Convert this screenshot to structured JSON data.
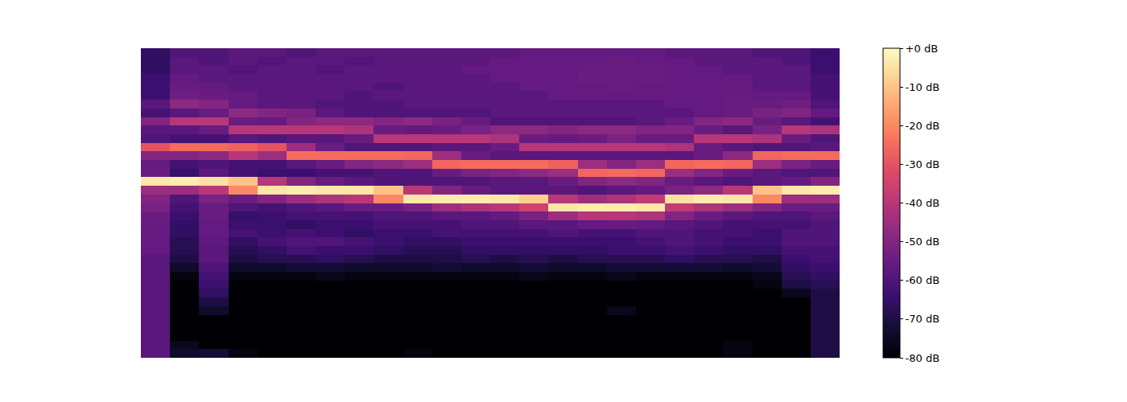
{
  "chart_data": {
    "type": "heatmap",
    "tick_labels": false,
    "cells": [
      [
        -66,
        -60,
        -60,
        -58,
        -58,
        -60,
        -58,
        -58,
        -58,
        -58,
        -58,
        -58,
        -58,
        -56,
        -56,
        -56,
        -56,
        -56,
        -58,
        -58,
        -58,
        -60,
        -60,
        -64
      ],
      [
        -66,
        -58,
        -60,
        -58,
        -60,
        -58,
        -58,
        -60,
        -58,
        -58,
        -58,
        -58,
        -56,
        -56,
        -56,
        -56,
        -55,
        -56,
        -56,
        -58,
        -58,
        -58,
        -60,
        -64
      ],
      [
        -66,
        -58,
        -58,
        -60,
        -58,
        -58,
        -60,
        -58,
        -58,
        -58,
        -58,
        -56,
        -56,
        -56,
        -56,
        -55,
        -55,
        -55,
        -56,
        -56,
        -58,
        -58,
        -58,
        -64
      ],
      [
        -64,
        -56,
        -58,
        -58,
        -58,
        -58,
        -58,
        -58,
        -58,
        -58,
        -58,
        -58,
        -56,
        -56,
        -56,
        -55,
        -55,
        -55,
        -56,
        -56,
        -56,
        -58,
        -58,
        -62
      ],
      [
        -64,
        -55,
        -56,
        -58,
        -58,
        -58,
        -58,
        -58,
        -60,
        -58,
        -58,
        -58,
        -58,
        -56,
        -56,
        -56,
        -55,
        -56,
        -56,
        -56,
        -56,
        -58,
        -58,
        -62
      ],
      [
        -64,
        -54,
        -55,
        -56,
        -58,
        -58,
        -58,
        -60,
        -58,
        -58,
        -58,
        -58,
        -58,
        -58,
        -56,
        -56,
        -56,
        -56,
        -56,
        -56,
        -55,
        -56,
        -56,
        -62
      ],
      [
        -58,
        -48,
        -50,
        -56,
        -58,
        -58,
        -60,
        -60,
        -60,
        -58,
        -58,
        -58,
        -58,
        -58,
        -58,
        -58,
        -58,
        -58,
        -56,
        -56,
        -55,
        -55,
        -54,
        -60
      ],
      [
        -62,
        -58,
        -55,
        -48,
        -50,
        -52,
        -58,
        -60,
        -60,
        -60,
        -60,
        -60,
        -58,
        -58,
        -58,
        -58,
        -58,
        -58,
        -58,
        -56,
        -55,
        -52,
        -50,
        -56
      ],
      [
        -50,
        -40,
        -40,
        -55,
        -56,
        -50,
        -48,
        -48,
        -50,
        -48,
        -52,
        -55,
        -60,
        -60,
        -60,
        -60,
        -60,
        -58,
        -55,
        -50,
        -48,
        -55,
        -58,
        -62
      ],
      [
        -58,
        -58,
        -55,
        -40,
        -40,
        -40,
        -40,
        -42,
        -55,
        -56,
        -55,
        -52,
        -48,
        -48,
        -50,
        -48,
        -48,
        -50,
        -50,
        -55,
        -58,
        -52,
        -40,
        -42
      ],
      [
        -60,
        -62,
        -62,
        -58,
        -60,
        -58,
        -58,
        -55,
        -40,
        -40,
        -40,
        -40,
        -42,
        -55,
        -56,
        -55,
        -52,
        -55,
        -55,
        -40,
        -40,
        -42,
        -55,
        -60
      ],
      [
        -30,
        -25,
        -25,
        -27,
        -30,
        -45,
        -55,
        -60,
        -60,
        -60,
        -58,
        -58,
        -55,
        -40,
        -40,
        -40,
        -40,
        -40,
        -42,
        -55,
        -58,
        -60,
        -60,
        -58
      ],
      [
        -50,
        -50,
        -48,
        -40,
        -45,
        -25,
        -25,
        -25,
        -25,
        -26,
        -45,
        -55,
        -58,
        -58,
        -58,
        -58,
        -58,
        -58,
        -58,
        -55,
        -48,
        -26,
        -25,
        -25
      ],
      [
        -56,
        -62,
        -60,
        -62,
        -62,
        -58,
        -55,
        -50,
        -48,
        -45,
        -26,
        -25,
        -25,
        -25,
        -27,
        -45,
        -50,
        -45,
        -26,
        -25,
        -26,
        -45,
        -52,
        -55
      ],
      [
        -55,
        -65,
        -58,
        -62,
        -64,
        -64,
        -62,
        -62,
        -60,
        -60,
        -55,
        -52,
        -50,
        -48,
        -45,
        -26,
        -25,
        -26,
        -45,
        -50,
        -55,
        -58,
        -60,
        -60
      ],
      [
        -4,
        -3,
        -5,
        -10,
        -40,
        -50,
        -55,
        -58,
        -60,
        -60,
        -60,
        -60,
        -58,
        -58,
        -55,
        -50,
        -48,
        -50,
        -55,
        -58,
        -60,
        -58,
        -56,
        -50
      ],
      [
        -45,
        -45,
        -40,
        -20,
        -4,
        -3,
        -4,
        -4,
        -10,
        -40,
        -50,
        -55,
        -58,
        -58,
        -58,
        -60,
        -58,
        -56,
        -52,
        -48,
        -40,
        -10,
        -4,
        -3
      ],
      [
        -50,
        -60,
        -52,
        -55,
        -50,
        -45,
        -42,
        -40,
        -20,
        -4,
        -3,
        -3,
        -4,
        -8,
        -40,
        -45,
        -42,
        -38,
        -5,
        -3,
        -4,
        -20,
        -45,
        -45
      ],
      [
        -52,
        -62,
        -55,
        -60,
        -62,
        -60,
        -58,
        -55,
        -55,
        -52,
        -45,
        -42,
        -40,
        -35,
        -4,
        -3,
        -3,
        -4,
        -38,
        -42,
        -45,
        -50,
        -55,
        -55
      ],
      [
        -55,
        -64,
        -55,
        -65,
        -64,
        -62,
        -62,
        -62,
        -60,
        -60,
        -58,
        -58,
        -56,
        -52,
        -45,
        -40,
        -40,
        -42,
        -50,
        -55,
        -58,
        -60,
        -60,
        -58
      ],
      [
        -55,
        -66,
        -56,
        -64,
        -64,
        -66,
        -64,
        -64,
        -62,
        -62,
        -62,
        -60,
        -60,
        -58,
        -58,
        -56,
        -55,
        -56,
        -58,
        -60,
        -62,
        -62,
        -62,
        -60
      ],
      [
        -56,
        -66,
        -56,
        -62,
        -64,
        -62,
        -64,
        -66,
        -64,
        -64,
        -62,
        -62,
        -62,
        -62,
        -60,
        -62,
        -62,
        -60,
        -60,
        -62,
        -62,
        -64,
        -60,
        -60
      ],
      [
        -56,
        -68,
        -57,
        -66,
        -62,
        -60,
        -60,
        -62,
        -64,
        -66,
        -66,
        -64,
        -64,
        -64,
        -64,
        -64,
        -64,
        -62,
        -60,
        -62,
        -64,
        -64,
        -60,
        -60
      ],
      [
        -56,
        -68,
        -58,
        -68,
        -66,
        -62,
        -64,
        -64,
        -66,
        -68,
        -68,
        -66,
        -66,
        -66,
        -66,
        -66,
        -64,
        -64,
        -62,
        -64,
        -66,
        -66,
        -62,
        -62
      ],
      [
        -58,
        -70,
        -58,
        -70,
        -68,
        -68,
        -66,
        -68,
        -70,
        -70,
        -70,
        -68,
        -70,
        -68,
        -70,
        -68,
        -68,
        -68,
        -66,
        -68,
        -68,
        -70,
        -64,
        -62
      ],
      [
        -58,
        -74,
        -60,
        -74,
        -74,
        -72,
        -72,
        -74,
        -74,
        -74,
        -72,
        -74,
        -74,
        -72,
        -74,
        -74,
        -72,
        -72,
        -72,
        -72,
        -74,
        -72,
        -66,
        -64
      ],
      [
        -58,
        -78,
        -62,
        -78,
        -78,
        -78,
        -76,
        -78,
        -78,
        -78,
        -78,
        -78,
        -78,
        -76,
        -78,
        -78,
        -76,
        -78,
        -78,
        -78,
        -78,
        -76,
        -68,
        -66
      ],
      [
        -58,
        -80,
        -64,
        -80,
        -80,
        -80,
        -80,
        -80,
        -80,
        -80,
        -80,
        -80,
        -80,
        -80,
        -80,
        -80,
        -80,
        -80,
        -80,
        -80,
        -80,
        -78,
        -70,
        -68
      ],
      [
        -58,
        -80,
        -66,
        -80,
        -80,
        -80,
        -80,
        -80,
        -80,
        -80,
        -80,
        -80,
        -80,
        -80,
        -80,
        -80,
        -80,
        -80,
        -80,
        -80,
        -80,
        -80,
        -76,
        -70
      ],
      [
        -58,
        -80,
        -70,
        -80,
        -80,
        -80,
        -80,
        -80,
        -80,
        -80,
        -80,
        -80,
        -80,
        -80,
        -80,
        -80,
        -80,
        -80,
        -80,
        -80,
        -80,
        -80,
        -80,
        -70
      ],
      [
        -58,
        -80,
        -74,
        -80,
        -80,
        -80,
        -80,
        -80,
        -80,
        -80,
        -80,
        -80,
        -80,
        -80,
        -80,
        -80,
        -76,
        -80,
        -80,
        -80,
        -80,
        -80,
        -80,
        -70
      ],
      [
        -58,
        -80,
        -80,
        -80,
        -80,
        -80,
        -80,
        -80,
        -80,
        -80,
        -80,
        -80,
        -80,
        -80,
        -80,
        -80,
        -80,
        -80,
        -80,
        -80,
        -80,
        -80,
        -80,
        -70
      ],
      [
        -58,
        -80,
        -80,
        -80,
        -80,
        -80,
        -80,
        -80,
        -80,
        -80,
        -80,
        -80,
        -80,
        -80,
        -80,
        -80,
        -80,
        -80,
        -80,
        -80,
        -80,
        -80,
        -80,
        -70
      ],
      [
        -58,
        -80,
        -80,
        -80,
        -80,
        -80,
        -80,
        -80,
        -80,
        -80,
        -80,
        -80,
        -80,
        -80,
        -80,
        -80,
        -80,
        -80,
        -80,
        -80,
        -80,
        -80,
        -80,
        -70
      ],
      [
        -58,
        -76,
        -80,
        -80,
        -80,
        -80,
        -80,
        -80,
        -80,
        -80,
        -80,
        -80,
        -80,
        -80,
        -80,
        -80,
        -80,
        -80,
        -80,
        -80,
        -78,
        -80,
        -80,
        -70
      ],
      [
        -58,
        -74,
        -72,
        -78,
        -80,
        -80,
        -80,
        -80,
        -80,
        -78,
        -80,
        -80,
        -80,
        -80,
        -80,
        -80,
        -80,
        -80,
        -80,
        -80,
        -78,
        -80,
        -80,
        -70
      ]
    ],
    "colorbar": {
      "range": [
        -80,
        0
      ],
      "ticks": [
        {
          "value": 0,
          "label": "+0 dB"
        },
        {
          "value": -10,
          "label": "-10 dB"
        },
        {
          "value": -20,
          "label": "-20 dB"
        },
        {
          "value": -30,
          "label": "-30 dB"
        },
        {
          "value": -40,
          "label": "-40 dB"
        },
        {
          "value": -50,
          "label": "-50 dB"
        },
        {
          "value": -60,
          "label": "-60 dB"
        },
        {
          "value": -70,
          "label": "-70 dB"
        },
        {
          "value": -80,
          "label": "-80 dB"
        }
      ]
    }
  }
}
